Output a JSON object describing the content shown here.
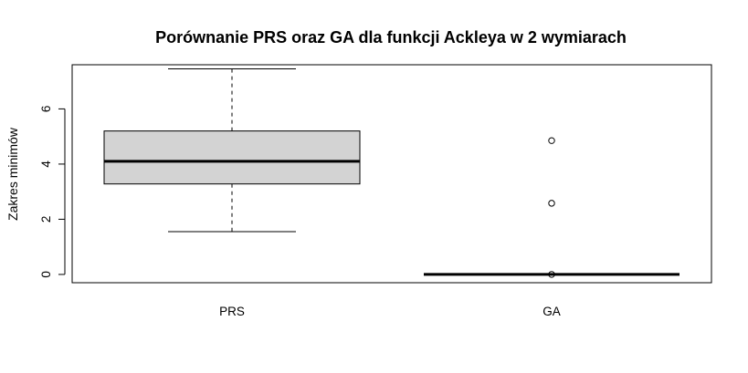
{
  "chart_data": {
    "type": "boxplot",
    "title": "Porównanie PRS oraz GA dla funkcji Ackleya w 2 wymiarach",
    "xlabel": "",
    "ylabel": "Zakres minimów",
    "categories": [
      "PRS",
      "GA"
    ],
    "y_ticks": [
      "0",
      "2",
      "4",
      "6"
    ],
    "ylim": [
      -0.3,
      7.6
    ],
    "grid": false,
    "legend": "none",
    "boxes": [
      {
        "name": "PRS",
        "whisker_low": 1.55,
        "q1": 3.28,
        "median": 4.1,
        "q3": 5.2,
        "whisker_high": 7.45,
        "outliers": []
      },
      {
        "name": "GA",
        "whisker_low": 0.0,
        "q1": 0.0,
        "median": 0.0,
        "q3": 0.0,
        "whisker_high": 0.0,
        "outliers": [
          4.85,
          2.58,
          0.0
        ]
      }
    ],
    "colors": {
      "box_fill": "#d3d3d3",
      "line": "#000000",
      "background": "#ffffff"
    }
  }
}
